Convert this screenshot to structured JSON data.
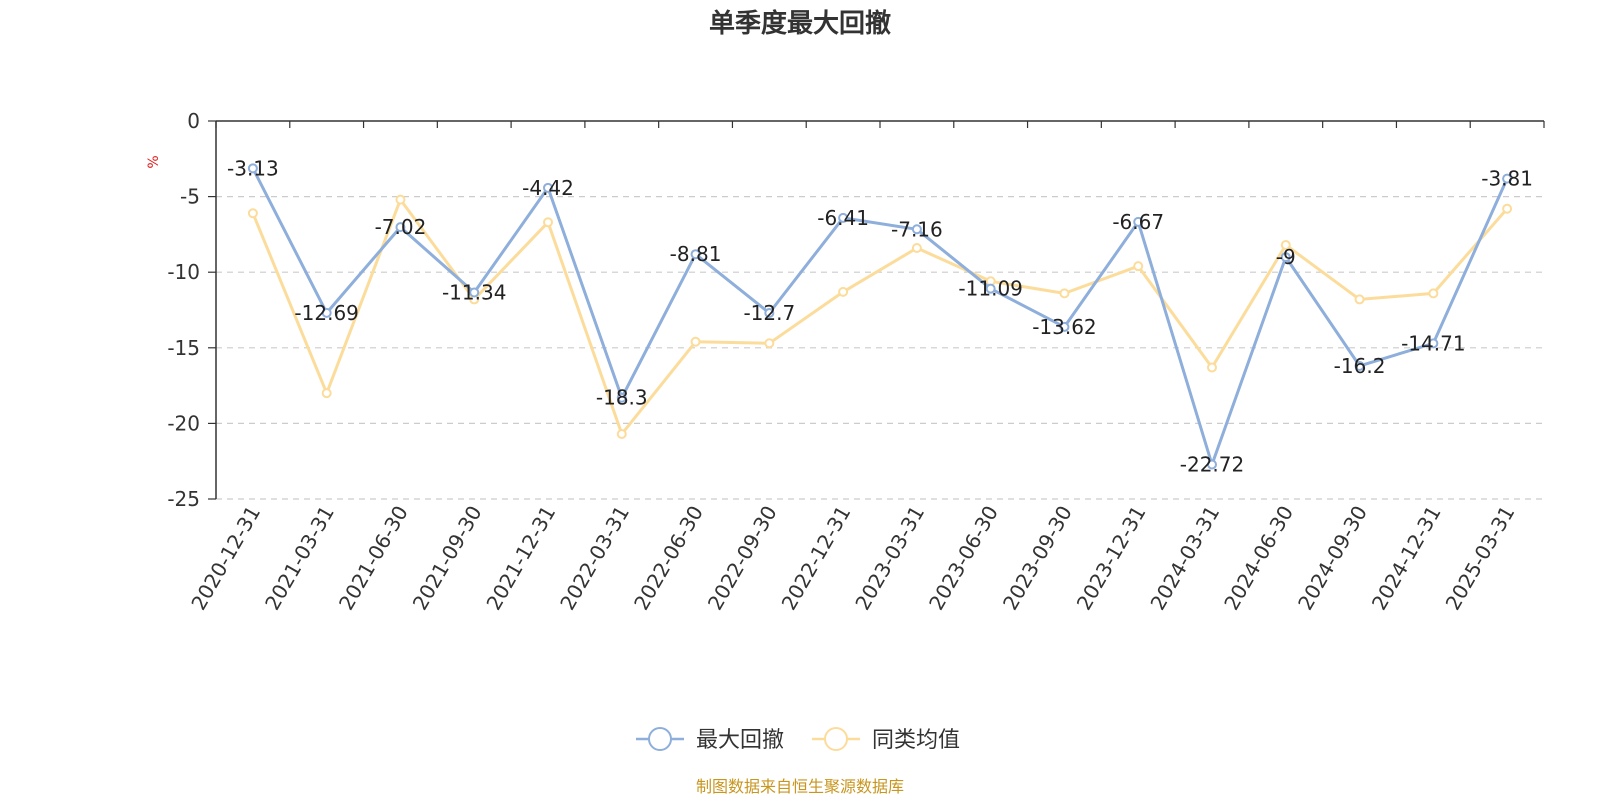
{
  "chart_data": {
    "type": "line",
    "title": "单季度最大回撤",
    "ylabel": "%",
    "ylim": [
      -25,
      0
    ],
    "yticks": [
      0,
      -5,
      -10,
      -15,
      -20,
      -25
    ],
    "grid": "horizontal-dashed",
    "legend_position": "bottom-center",
    "categories": [
      "2020-12-31",
      "2021-03-31",
      "2021-06-30",
      "2021-09-30",
      "2021-12-31",
      "2022-03-31",
      "2022-06-30",
      "2022-09-30",
      "2022-12-31",
      "2023-03-31",
      "2023-06-30",
      "2023-09-30",
      "2023-12-31",
      "2024-03-31",
      "2024-06-30",
      "2024-09-30",
      "2024-12-31",
      "2025-03-31"
    ],
    "series": [
      {
        "name": "最大回撤",
        "color": "#8eaedb",
        "show_labels": true,
        "values": [
          -3.13,
          -12.69,
          -7.02,
          -11.34,
          -4.42,
          -18.3,
          -8.81,
          -12.7,
          -6.41,
          -7.16,
          -11.09,
          -13.62,
          -6.67,
          -22.72,
          -9,
          -16.2,
          -14.71,
          -3.81
        ],
        "labels": [
          "-3.13",
          "-12.69",
          "-7.02",
          "-11.34",
          "-4.42",
          "-18.3",
          "-8.81",
          "-12.7",
          "-6.41",
          "-7.16",
          "-11.09",
          "-13.62",
          "-6.67",
          "-22.72",
          "-9",
          "-16.2",
          "-14.71",
          "-3.81"
        ]
      },
      {
        "name": "同类均值",
        "color": "#fcdc9b",
        "show_labels": false,
        "values": [
          -6.1,
          -18.0,
          -5.2,
          -11.8,
          -6.7,
          -20.7,
          -14.6,
          -14.7,
          -11.3,
          -8.4,
          -10.6,
          -11.4,
          -9.6,
          -16.3,
          -8.2,
          -11.8,
          -11.4,
          -5.8
        ]
      }
    ],
    "source_note": "制图数据来自恒生聚源数据库",
    "source_color": "#c8961e",
    "unit_color": "#e02020"
  }
}
